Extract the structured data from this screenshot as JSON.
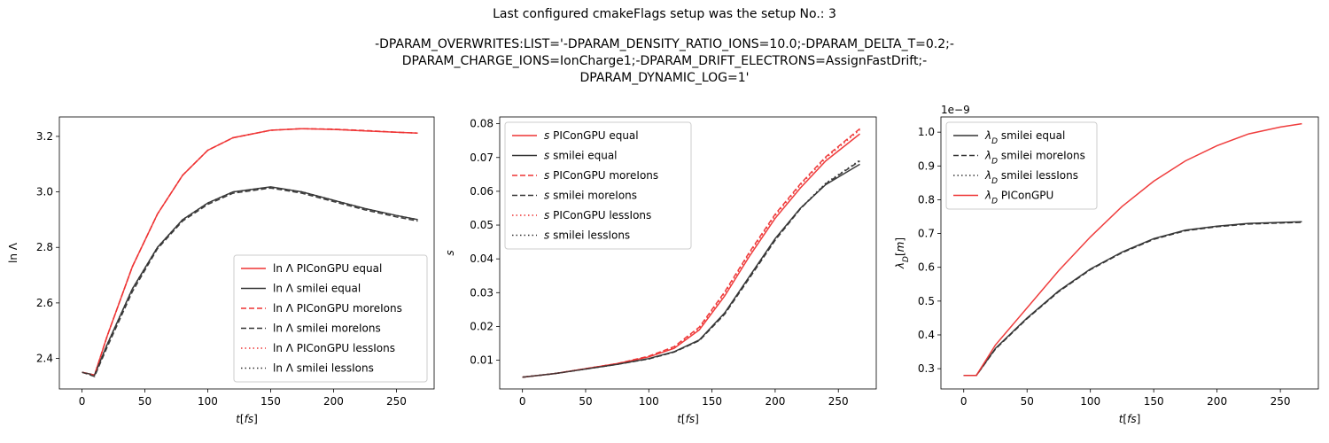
{
  "figure": {
    "title_line1": "Last configured cmakeFlags setup was the setup No.: 3",
    "title_line2": "-DPARAM_OVERWRITES:LIST='-DPARAM_DENSITY_RATIO_IONS=10.0;-DPARAM_DELTA_T=0.2;-",
    "title_line3": "DPARAM_CHARGE_IONS=IonCharge1;-DPARAM_DRIFT_ELECTRONS=AssignFastDrift;-",
    "title_line4": "DPARAM_DYNAMIC_LOG=1'"
  },
  "colors": {
    "red": "#ee3333",
    "black": "#333333"
  },
  "chart_data": [
    {
      "type": "line",
      "xlabel": "t[fs]",
      "ylabel": "ln Λ",
      "xlim": [
        -18,
        280
      ],
      "ylim": [
        2.29,
        3.27
      ],
      "xticks": [
        0,
        50,
        100,
        150,
        200,
        250
      ],
      "yticks": [
        2.4,
        2.6,
        2.8,
        3.0,
        3.2
      ],
      "ytick_labels": [
        "2.4",
        "2.6",
        "2.8",
        "3.0",
        "3.2"
      ],
      "legend_position": "lower-right",
      "series": [
        {
          "name": "ln Λ PIConGPU equal",
          "color": "#ee3333",
          "dash": "solid",
          "x": [
            0,
            10,
            20,
            40,
            60,
            80,
            100,
            120,
            150,
            175,
            200,
            225,
            250,
            267
          ],
          "y": [
            2.35,
            2.34,
            2.48,
            2.73,
            2.92,
            3.06,
            3.15,
            3.195,
            3.222,
            3.228,
            3.225,
            3.22,
            3.215,
            3.212
          ]
        },
        {
          "name": "ln Λ smilei equal",
          "color": "#333333",
          "dash": "solid",
          "x": [
            0,
            10,
            20,
            40,
            60,
            80,
            100,
            120,
            150,
            175,
            200,
            225,
            250,
            267
          ],
          "y": [
            2.35,
            2.34,
            2.45,
            2.65,
            2.8,
            2.9,
            2.96,
            3.0,
            3.018,
            3.0,
            2.97,
            2.94,
            2.915,
            2.9
          ]
        },
        {
          "name": "ln Λ PIConGPU moreIons",
          "color": "#ee3333",
          "dash": "dashed",
          "x": [
            0,
            10,
            20,
            40,
            60,
            80,
            100,
            120,
            150,
            175,
            200,
            225,
            250,
            267
          ],
          "y": [
            2.35,
            2.34,
            2.48,
            2.73,
            2.92,
            3.06,
            3.15,
            3.195,
            3.222,
            3.228,
            3.226,
            3.221,
            3.215,
            3.212
          ]
        },
        {
          "name": "ln Λ smilei moreIons",
          "color": "#333333",
          "dash": "dashed",
          "x": [
            0,
            10,
            20,
            40,
            60,
            80,
            100,
            120,
            150,
            175,
            200,
            225,
            250,
            267
          ],
          "y": [
            2.35,
            2.335,
            2.44,
            2.64,
            2.795,
            2.895,
            2.955,
            2.995,
            3.014,
            2.995,
            2.965,
            2.935,
            2.91,
            2.895
          ]
        },
        {
          "name": "ln Λ PIConGPU lessIons",
          "color": "#ee3333",
          "dash": "dotted",
          "x": [
            0,
            10,
            20,
            40,
            60,
            80,
            100,
            120,
            150,
            175,
            200,
            225,
            250,
            267
          ],
          "y": [
            2.35,
            2.34,
            2.48,
            2.73,
            2.92,
            3.06,
            3.15,
            3.195,
            3.222,
            3.228,
            3.225,
            3.22,
            3.215,
            3.212
          ]
        },
        {
          "name": "ln Λ smilei lessIons",
          "color": "#333333",
          "dash": "dotted",
          "x": [
            0,
            10,
            20,
            40,
            60,
            80,
            100,
            120,
            150,
            175,
            200,
            225,
            250,
            267
          ],
          "y": [
            2.35,
            2.34,
            2.45,
            2.65,
            2.8,
            2.9,
            2.96,
            3.0,
            3.017,
            3.0,
            2.97,
            2.94,
            2.915,
            2.9
          ]
        }
      ]
    },
    {
      "type": "line",
      "xlabel": "t[fs]",
      "ylabel": "s",
      "xlim": [
        -18,
        280
      ],
      "ylim": [
        0.0015,
        0.082
      ],
      "xticks": [
        0,
        50,
        100,
        150,
        200,
        250
      ],
      "yticks": [
        0.01,
        0.02,
        0.03,
        0.04,
        0.05,
        0.06,
        0.07,
        0.08
      ],
      "ytick_labels": [
        "0.01",
        "0.02",
        "0.03",
        "0.04",
        "0.05",
        "0.06",
        "0.07",
        "0.08"
      ],
      "legend_position": "upper-left",
      "series": [
        {
          "name": "s PIConGPU equal",
          "color": "#ee3333",
          "dash": "solid",
          "x": [
            0,
            25,
            50,
            75,
            100,
            120,
            140,
            160,
            180,
            200,
            220,
            240,
            267
          ],
          "y": [
            0.005,
            0.006,
            0.0075,
            0.009,
            0.011,
            0.0135,
            0.019,
            0.029,
            0.041,
            0.052,
            0.061,
            0.069,
            0.077
          ]
        },
        {
          "name": "s smilei equal",
          "color": "#333333",
          "dash": "solid",
          "x": [
            0,
            25,
            50,
            75,
            100,
            120,
            140,
            160,
            180,
            200,
            220,
            240,
            267
          ],
          "y": [
            0.005,
            0.006,
            0.0074,
            0.0088,
            0.0105,
            0.0125,
            0.016,
            0.024,
            0.035,
            0.046,
            0.055,
            0.062,
            0.068
          ]
        },
        {
          "name": "s PIConGPU moreIons",
          "color": "#ee3333",
          "dash": "dashed",
          "x": [
            0,
            25,
            50,
            75,
            100,
            120,
            140,
            160,
            180,
            200,
            220,
            240,
            267
          ],
          "y": [
            0.005,
            0.006,
            0.0075,
            0.009,
            0.0112,
            0.014,
            0.0198,
            0.0302,
            0.0422,
            0.0532,
            0.0622,
            0.0702,
            0.0785
          ]
        },
        {
          "name": "s smilei moreIons",
          "color": "#333333",
          "dash": "dashed",
          "x": [
            0,
            25,
            50,
            75,
            100,
            120,
            140,
            160,
            180,
            200,
            220,
            240,
            267
          ],
          "y": [
            0.005,
            0.006,
            0.0074,
            0.0088,
            0.0104,
            0.0124,
            0.0158,
            0.0236,
            0.0345,
            0.0455,
            0.0548,
            0.0622,
            0.069
          ]
        },
        {
          "name": "s PIConGPU lessIons",
          "color": "#ee3333",
          "dash": "dotted",
          "x": [
            0,
            25,
            50,
            75,
            100,
            120,
            140,
            160,
            180,
            200,
            220,
            240,
            267
          ],
          "y": [
            0.005,
            0.006,
            0.0075,
            0.009,
            0.0111,
            0.0138,
            0.0195,
            0.0298,
            0.0418,
            0.0528,
            0.0618,
            0.0698,
            0.0782
          ]
        },
        {
          "name": "s smilei lessIons",
          "color": "#333333",
          "dash": "dotted",
          "x": [
            0,
            25,
            50,
            75,
            100,
            120,
            140,
            160,
            180,
            200,
            220,
            240,
            267
          ],
          "y": [
            0.005,
            0.006,
            0.0074,
            0.0088,
            0.0104,
            0.0124,
            0.0159,
            0.0238,
            0.0348,
            0.0458,
            0.055,
            0.0624,
            0.0692
          ]
        }
      ]
    },
    {
      "type": "line",
      "xlabel": "t[fs]",
      "ylabel": "λ_D[m]",
      "offset_text": "1e−9",
      "xlim": [
        -18,
        280
      ],
      "ylim": [
        0.24,
        1.045
      ],
      "xticks": [
        0,
        50,
        100,
        150,
        200,
        250
      ],
      "yticks": [
        0.3,
        0.4,
        0.5,
        0.6,
        0.7,
        0.8,
        0.9,
        1.0
      ],
      "ytick_labels": [
        "0.3",
        "0.4",
        "0.5",
        "0.6",
        "0.7",
        "0.8",
        "0.9",
        "1.0"
      ],
      "legend_position": "upper-left",
      "series": [
        {
          "name": "λD smilei equal",
          "color": "#333333",
          "dash": "solid",
          "x": [
            0,
            10,
            25,
            50,
            75,
            100,
            125,
            150,
            175,
            200,
            225,
            250,
            267
          ],
          "y": [
            0.28,
            0.28,
            0.36,
            0.45,
            0.53,
            0.595,
            0.645,
            0.685,
            0.71,
            0.722,
            0.73,
            0.733,
            0.735
          ]
        },
        {
          "name": "λD smilei moreIons",
          "color": "#333333",
          "dash": "dashed",
          "x": [
            0,
            10,
            25,
            50,
            75,
            100,
            125,
            150,
            175,
            200,
            225,
            250,
            267
          ],
          "y": [
            0.28,
            0.28,
            0.358,
            0.448,
            0.528,
            0.593,
            0.643,
            0.683,
            0.708,
            0.72,
            0.728,
            0.731,
            0.733
          ]
        },
        {
          "name": "λD smilei lessIons",
          "color": "#333333",
          "dash": "dotted",
          "x": [
            0,
            10,
            25,
            50,
            75,
            100,
            125,
            150,
            175,
            200,
            225,
            250,
            267
          ],
          "y": [
            0.28,
            0.28,
            0.359,
            0.449,
            0.529,
            0.594,
            0.644,
            0.684,
            0.709,
            0.721,
            0.729,
            0.732,
            0.734
          ]
        },
        {
          "name": "λD PIConGPU",
          "color": "#ee3333",
          "dash": "solid",
          "x": [
            0,
            10,
            25,
            50,
            75,
            100,
            125,
            150,
            175,
            200,
            225,
            250,
            267
          ],
          "y": [
            0.28,
            0.28,
            0.37,
            0.48,
            0.59,
            0.69,
            0.78,
            0.855,
            0.915,
            0.96,
            0.995,
            1.015,
            1.025
          ]
        }
      ]
    }
  ]
}
